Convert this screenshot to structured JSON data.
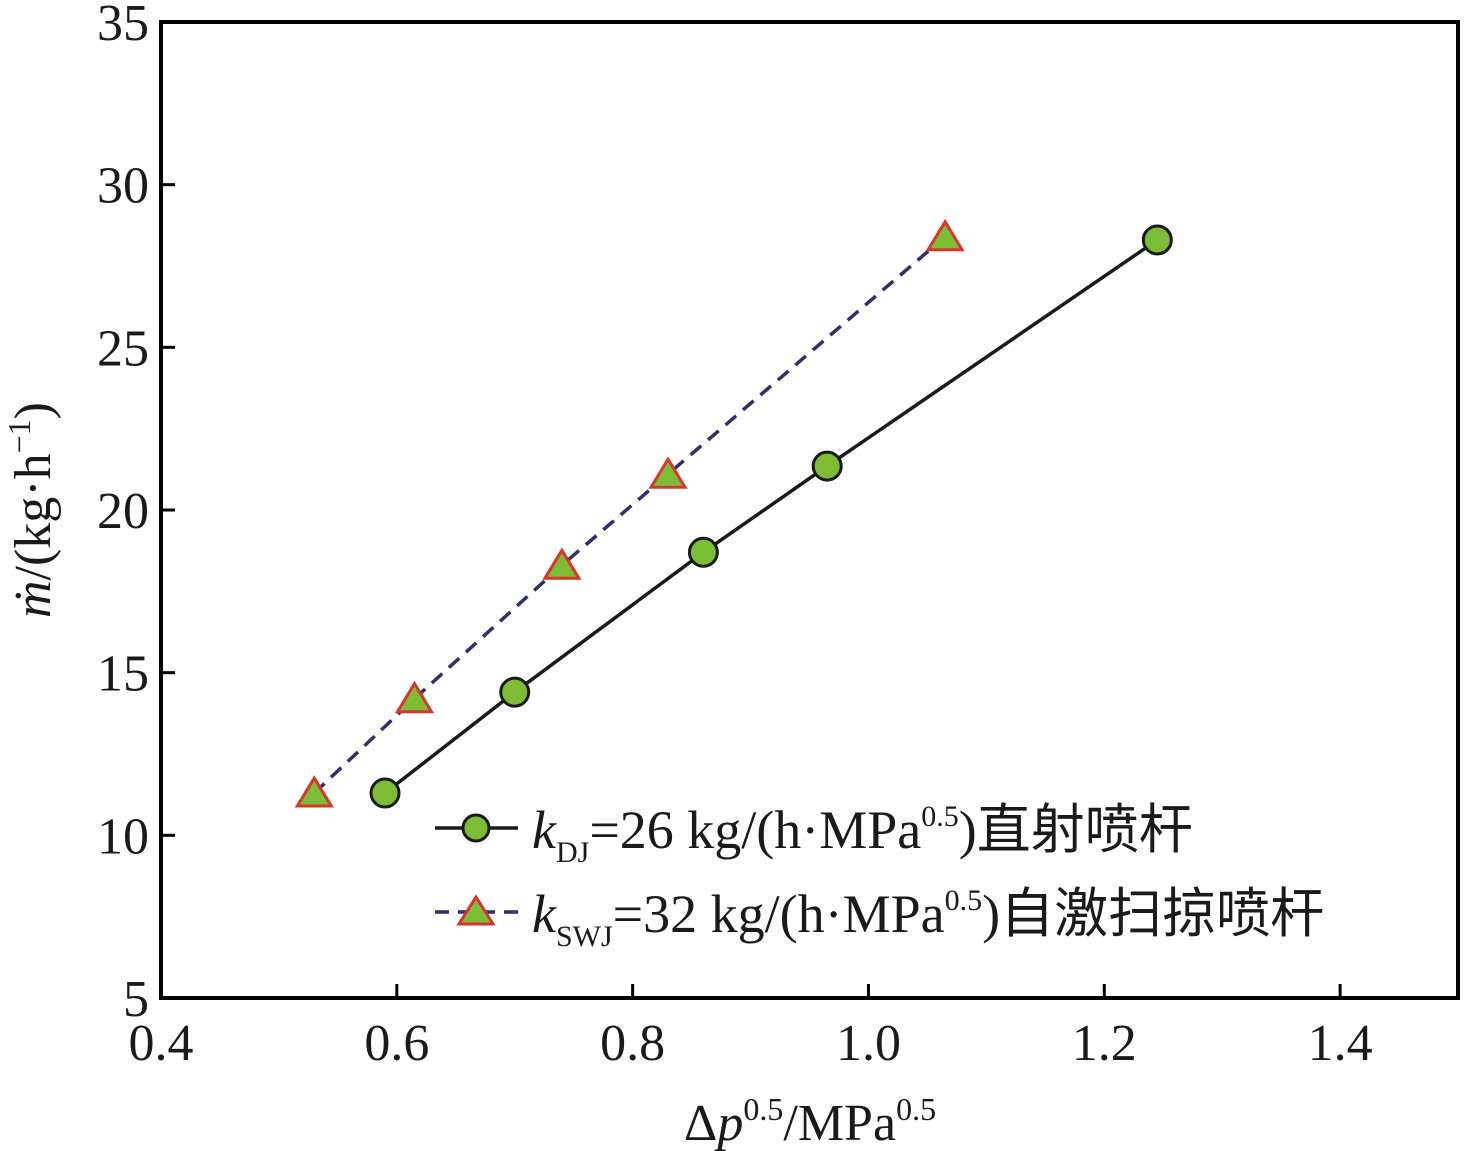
{
  "chart_data": {
    "type": "line",
    "xlabel": {
      "base": "Δ",
      "var": "p",
      "sup1": "0.5",
      "unit": "/MPa",
      "sup2": "0.5"
    },
    "ylabel": {
      "var": "ṁ",
      "rest": "/(kg·h",
      "sup": "−1",
      "close": ")"
    },
    "xlim": [
      0.4,
      1.5
    ],
    "ylim": [
      5,
      35
    ],
    "xticks": [
      0.4,
      0.6,
      0.8,
      1.0,
      1.2,
      1.4
    ],
    "xtick_labels": [
      "0.4",
      "0.6",
      "0.8",
      "1.0",
      "1.2",
      "1.4"
    ],
    "yticks": [
      5,
      10,
      15,
      20,
      25,
      30,
      35
    ],
    "ytick_labels": [
      "5",
      "10",
      "15",
      "20",
      "25",
      "30",
      "35"
    ],
    "series": [
      {
        "name": "kDJ",
        "marker": "circle",
        "line": "solid",
        "x": [
          0.59,
          0.7,
          0.86,
          0.965,
          1.245
        ],
        "y": [
          11.3,
          14.4,
          18.7,
          21.35,
          28.3
        ],
        "legend": {
          "k": "k",
          "sub": "DJ",
          "mid": "=26 kg/(h·MPa",
          "sup": "0.5",
          "tail": ")直射喷杆"
        }
      },
      {
        "name": "kSWJ",
        "marker": "triangle",
        "line": "dashed",
        "x": [
          0.53,
          0.615,
          0.74,
          0.83,
          1.065
        ],
        "y": [
          11.3,
          14.2,
          18.3,
          21.1,
          28.4
        ],
        "legend": {
          "k": "k",
          "sub": "SWJ",
          "mid": "=32 kg/(h·MPa",
          "sup": "0.5",
          "tail": ")自激扫掠喷杆"
        }
      }
    ]
  },
  "colors": {
    "axis": "#000000",
    "marker_fill": "#7cbd35",
    "circle_edge": "#1a1a1a",
    "triangle_edge": "#d9362b",
    "line_solid": "#1a1a1a",
    "line_dashed": "#2e2f6e"
  }
}
